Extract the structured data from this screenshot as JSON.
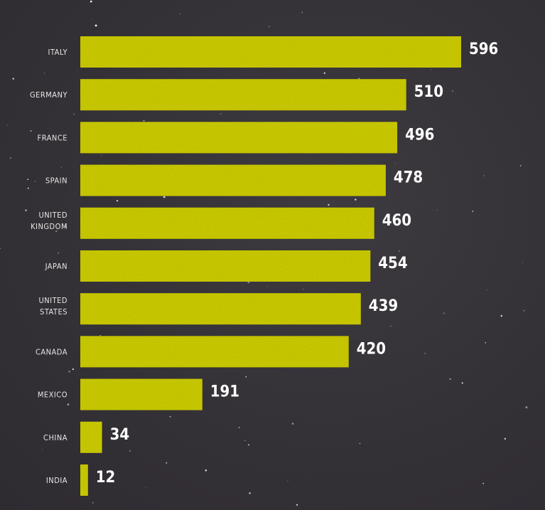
{
  "chart_data": {
    "type": "bar",
    "orientation": "horizontal",
    "categories": [
      "ITALY",
      "GERMANY",
      "FRANCE",
      "SPAIN",
      "UNITED KINGDOM",
      "JAPAN",
      "UNITED STATES",
      "CANADA",
      "MEXICO",
      "CHINA",
      "INDIA"
    ],
    "values": [
      596,
      510,
      496,
      478,
      460,
      454,
      439,
      420,
      191,
      34,
      12
    ],
    "title": "",
    "xlabel": "",
    "ylabel": "",
    "xlim": [
      0,
      596
    ],
    "grid": false,
    "bar_color": "#d6d600",
    "background_color": "#353238",
    "label_color": "#e9e6e6",
    "value_color": "#ffffff"
  }
}
